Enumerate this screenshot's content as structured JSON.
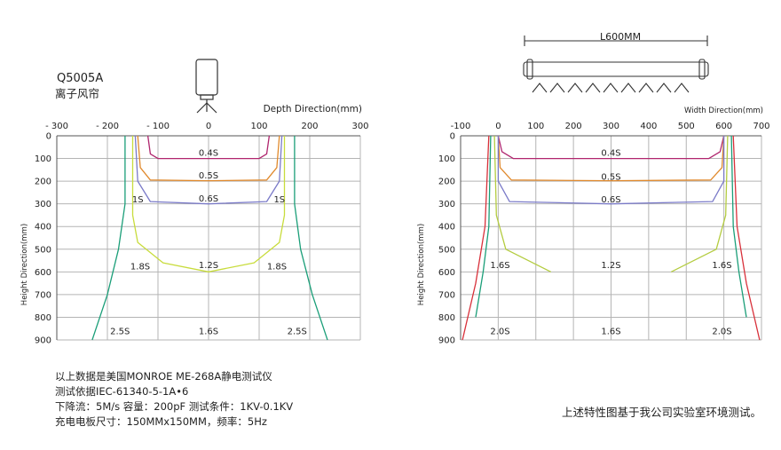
{
  "product": {
    "model": "Q5005A",
    "name": "离子风帘"
  },
  "device_label": "L600MM",
  "notes": [
    "以上数据是美国MONROE ME-268A静电测试仪",
    "测试依据IEC-61340-5-1A•6",
    "下降流：5M/s 容量：200pF 测试条件：1KV-0.1KV",
    "充电电板尺寸：150MMx150MM，频率：5Hz"
  ],
  "footer_note": "上述特性图基于我公司实验室环境测试。",
  "colors": {
    "s04": "#b0266e",
    "s05": "#e0892c",
    "s06": "#7a7ac8",
    "s1": "#c8dc3c",
    "s18": "#b4cc40",
    "s16": "#b4cc40",
    "s25": "#1a9e78",
    "s20": "#1a9e78",
    "s20_outer": "#d8303a",
    "grid": "#b4b4b4",
    "axis": "#555555"
  },
  "chart_data": [
    {
      "type": "line",
      "title": "",
      "xlabel": "Depth Direction(mm)",
      "ylabel": "Height Direction(mm)",
      "xlim": [
        -300,
        300
      ],
      "ylim": [
        0,
        900
      ],
      "x_ticks": [
        "- 300",
        "- 200",
        "- 100",
        "0",
        "100",
        "200",
        "300"
      ],
      "y_ticks": [
        "0",
        "100",
        "200",
        "300",
        "400",
        "500",
        "600",
        "700",
        "800",
        "900"
      ],
      "series": [
        {
          "name": "0.4S",
          "color_key": "s04",
          "points": [
            [
              -120,
              0
            ],
            [
              -115,
              80
            ],
            [
              -100,
              100
            ],
            [
              0,
              100
            ],
            [
              100,
              100
            ],
            [
              115,
              80
            ],
            [
              120,
              0
            ]
          ]
        },
        {
          "name": "0.5S",
          "color_key": "s05",
          "points": [
            [
              -140,
              0
            ],
            [
              -135,
              140
            ],
            [
              -115,
              195
            ],
            [
              0,
              198
            ],
            [
              115,
              195
            ],
            [
              135,
              140
            ],
            [
              140,
              0
            ]
          ]
        },
        {
          "name": "0.6S",
          "color_key": "s06",
          "points": [
            [
              -145,
              0
            ],
            [
              -140,
              200
            ],
            [
              -115,
              290
            ],
            [
              0,
              300
            ],
            [
              115,
              290
            ],
            [
              140,
              200
            ],
            [
              145,
              0
            ]
          ]
        },
        {
          "name": "1S",
          "color_key": "s1",
          "points": [
            [
              -150,
              0
            ],
            [
              -150,
              350
            ],
            [
              -140,
              470
            ],
            [
              -90,
              560
            ],
            [
              0,
              600
            ],
            [
              90,
              560
            ],
            [
              140,
              470
            ],
            [
              150,
              350
            ],
            [
              150,
              0
            ]
          ]
        },
        {
          "name": "2.5S",
          "color_key": "s25",
          "points": [
            [
              -165,
              0
            ],
            [
              -165,
              300
            ],
            [
              -178,
              500
            ],
            [
              -200,
              700
            ],
            [
              -230,
              900
            ]
          ]
        },
        {
          "name": "2.5S",
          "color_key": "s25",
          "points": [
            [
              170,
              0
            ],
            [
              170,
              300
            ],
            [
              182,
              500
            ],
            [
              205,
              700
            ],
            [
              235,
              900
            ]
          ]
        }
      ],
      "labels": [
        {
          "text": "0.4S",
          "x": 0,
          "y": 75
        },
        {
          "text": "0.5S",
          "x": 0,
          "y": 175
        },
        {
          "text": "0.6S",
          "x": 0,
          "y": 275
        },
        {
          "text": "1S",
          "x": -140,
          "y": 280
        },
        {
          "text": "1S",
          "x": 140,
          "y": 280
        },
        {
          "text": "1.8S",
          "x": -135,
          "y": 575
        },
        {
          "text": "1.2S",
          "x": 0,
          "y": 570
        },
        {
          "text": "1.8S",
          "x": 135,
          "y": 575
        },
        {
          "text": "2.5S",
          "x": -175,
          "y": 860
        },
        {
          "text": "1.6S",
          "x": 0,
          "y": 860
        },
        {
          "text": "2.5S",
          "x": 175,
          "y": 860
        }
      ]
    },
    {
      "type": "line",
      "title": "",
      "xlabel": "Width Direction(mm)",
      "ylabel": "Height Direction(mm)",
      "xlim": [
        -100,
        700
      ],
      "ylim": [
        0,
        900
      ],
      "x_ticks": [
        "-100",
        "0",
        "100",
        "200",
        "300",
        "400",
        "500",
        "600",
        "700"
      ],
      "y_ticks": [
        "0",
        "100",
        "200",
        "300",
        "400",
        "500",
        "600",
        "700",
        "800",
        "900"
      ],
      "series": [
        {
          "name": "0.4S",
          "color_key": "s04",
          "points": [
            [
              0,
              0
            ],
            [
              10,
              70
            ],
            [
              40,
              100
            ],
            [
              300,
              100
            ],
            [
              560,
              100
            ],
            [
              590,
              70
            ],
            [
              600,
              0
            ]
          ]
        },
        {
          "name": "0.5S",
          "color_key": "s05",
          "points": [
            [
              0,
              0
            ],
            [
              5,
              140
            ],
            [
              35,
              195
            ],
            [
              300,
              198
            ],
            [
              565,
              195
            ],
            [
              595,
              140
            ],
            [
              600,
              0
            ]
          ]
        },
        {
          "name": "0.6S",
          "color_key": "s06",
          "points": [
            [
              0,
              0
            ],
            [
              0,
              200
            ],
            [
              30,
              290
            ],
            [
              300,
              300
            ],
            [
              570,
              290
            ],
            [
              600,
              200
            ],
            [
              600,
              0
            ]
          ]
        },
        {
          "name": "1.6S",
          "color_key": "s16",
          "points": [
            [
              -10,
              0
            ],
            [
              -5,
              350
            ],
            [
              20,
              500
            ],
            [
              140,
              600
            ]
          ]
        },
        {
          "name": "1.6S",
          "color_key": "s16",
          "points": [
            [
              610,
              0
            ],
            [
              605,
              350
            ],
            [
              580,
              500
            ],
            [
              460,
              600
            ]
          ]
        },
        {
          "name": "2.0S",
          "color_key": "s20",
          "points": [
            [
              -20,
              0
            ],
            [
              -25,
              400
            ],
            [
              -40,
              600
            ],
            [
              -60,
              800
            ]
          ]
        },
        {
          "name": "2.0S",
          "color_key": "s20",
          "points": [
            [
              620,
              0
            ],
            [
              625,
              400
            ],
            [
              640,
              600
            ],
            [
              660,
              800
            ]
          ]
        },
        {
          "name": "",
          "color_key": "s20_outer",
          "points": [
            [
              -25,
              0
            ],
            [
              -35,
              400
            ],
            [
              -60,
              650
            ],
            [
              -95,
              900
            ]
          ]
        },
        {
          "name": "",
          "color_key": "s20_outer",
          "points": [
            [
              625,
              0
            ],
            [
              635,
              400
            ],
            [
              660,
              650
            ],
            [
              695,
              900
            ]
          ]
        }
      ],
      "labels": [
        {
          "text": "0.4S",
          "x": 300,
          "y": 75
        },
        {
          "text": "0.5S",
          "x": 300,
          "y": 180
        },
        {
          "text": "0.6S",
          "x": 300,
          "y": 280
        },
        {
          "text": "1.6S",
          "x": 5,
          "y": 570
        },
        {
          "text": "1.2S",
          "x": 300,
          "y": 570
        },
        {
          "text": "1.6S",
          "x": 595,
          "y": 570
        },
        {
          "text": "2.0S",
          "x": 5,
          "y": 860
        },
        {
          "text": "1.6S",
          "x": 300,
          "y": 860
        },
        {
          "text": "2.0S",
          "x": 595,
          "y": 860
        }
      ]
    }
  ]
}
